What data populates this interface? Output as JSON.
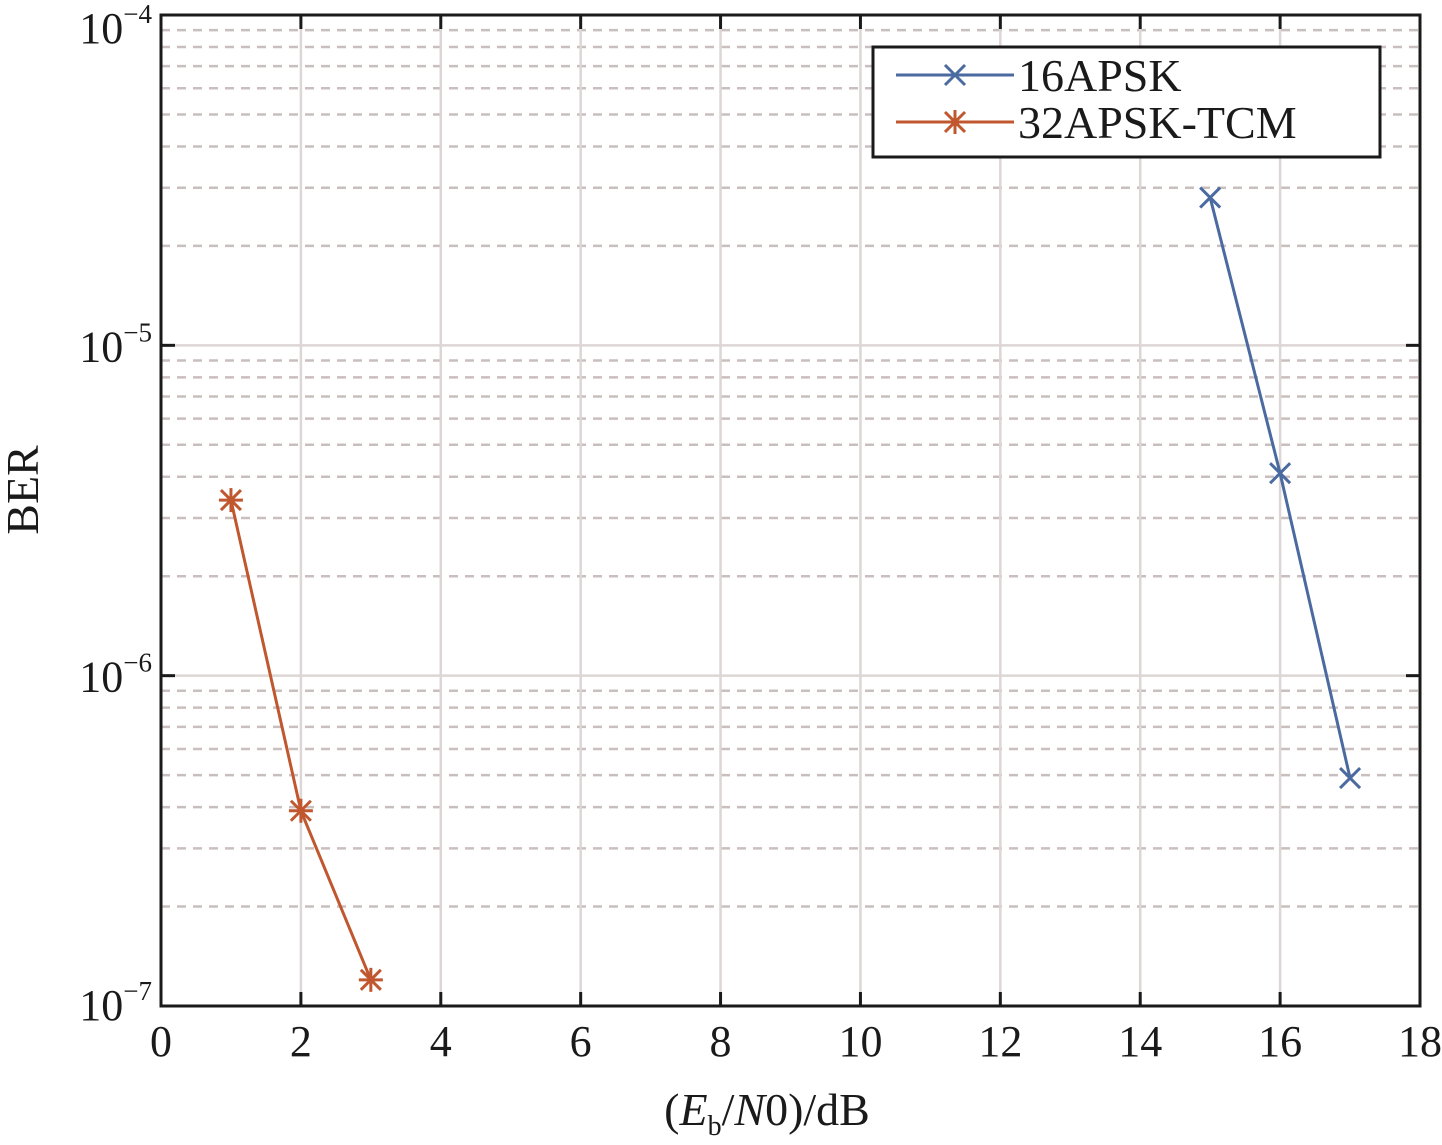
{
  "chart_data": {
    "type": "line",
    "xlabel": {
      "open": "(",
      "e": "E",
      "sub": "b",
      "slash": "/",
      "n": "N",
      "rest": "0)/dB"
    },
    "ylabel": "BER",
    "xlim": [
      0,
      18
    ],
    "ylim": [
      1e-07,
      0.0001
    ],
    "yscale": "log",
    "grid": true,
    "legend_position": "top-right",
    "x_ticks": [
      {
        "value": 0,
        "label": "0"
      },
      {
        "value": 2,
        "label": "2"
      },
      {
        "value": 4,
        "label": "4"
      },
      {
        "value": 6,
        "label": "6"
      },
      {
        "value": 8,
        "label": "8"
      },
      {
        "value": 10,
        "label": "10"
      },
      {
        "value": 12,
        "label": "12"
      },
      {
        "value": 14,
        "label": "14"
      },
      {
        "value": 16,
        "label": "16"
      },
      {
        "value": 18,
        "label": "18"
      }
    ],
    "y_ticks": [
      {
        "value": 1e-07,
        "base": "10",
        "exp": "−7"
      },
      {
        "value": 1e-06,
        "base": "10",
        "exp": "−6"
      },
      {
        "value": 1e-05,
        "base": "10",
        "exp": "−5"
      },
      {
        "value": 0.0001,
        "base": "10",
        "exp": "−4"
      }
    ],
    "series": [
      {
        "name": "16APSK",
        "marker": "x",
        "color": "#4a6aa0",
        "x": [
          15,
          16,
          17
        ],
        "y": [
          2.8e-05,
          4.1e-06,
          4.9e-07
        ]
      },
      {
        "name": "32APSK-TCM",
        "marker": "asterisk",
        "color": "#c0572f",
        "x": [
          1,
          2,
          3
        ],
        "y": [
          3.4e-06,
          3.9e-07,
          1.2e-07
        ]
      }
    ]
  },
  "colors": {
    "axis": "#1a1a1a",
    "major_grid": "#dcd6d4",
    "minor_grid": "#c9bfbe"
  }
}
